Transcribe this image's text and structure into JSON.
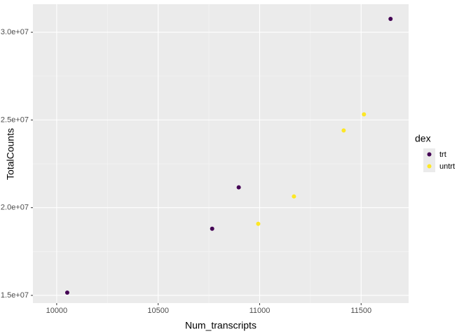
{
  "chart_data": {
    "type": "scatter",
    "x_label": "Num_transcripts",
    "y_label": "TotalCounts",
    "legend_title": "dex",
    "series": [
      {
        "name": "trt",
        "color": "#440154",
        "x": [
          10052,
          10766,
          10897,
          11645
        ],
        "values": [
          15160000,
          18800000,
          21160000,
          30760000
        ]
      },
      {
        "name": "untrt",
        "color": "#FDE725",
        "x": [
          10993,
          11169,
          11414,
          11514
        ],
        "values": [
          19080000,
          20640000,
          24400000,
          25320000
        ]
      }
    ],
    "xlim": [
      9883,
      11734
    ],
    "xticks": [
      10000,
      10500,
      11000,
      11500
    ],
    "ylim": [
      14560000,
      31600000
    ],
    "yticks": [
      {
        "value": 15000000,
        "label": "1.5e+07"
      },
      {
        "value": 20000000,
        "label": "2.0e+07"
      },
      {
        "value": 25000000,
        "label": "2.5e+07"
      },
      {
        "value": 30000000,
        "label": "3.0e+07"
      }
    ],
    "grid": true,
    "legend": "right"
  }
}
